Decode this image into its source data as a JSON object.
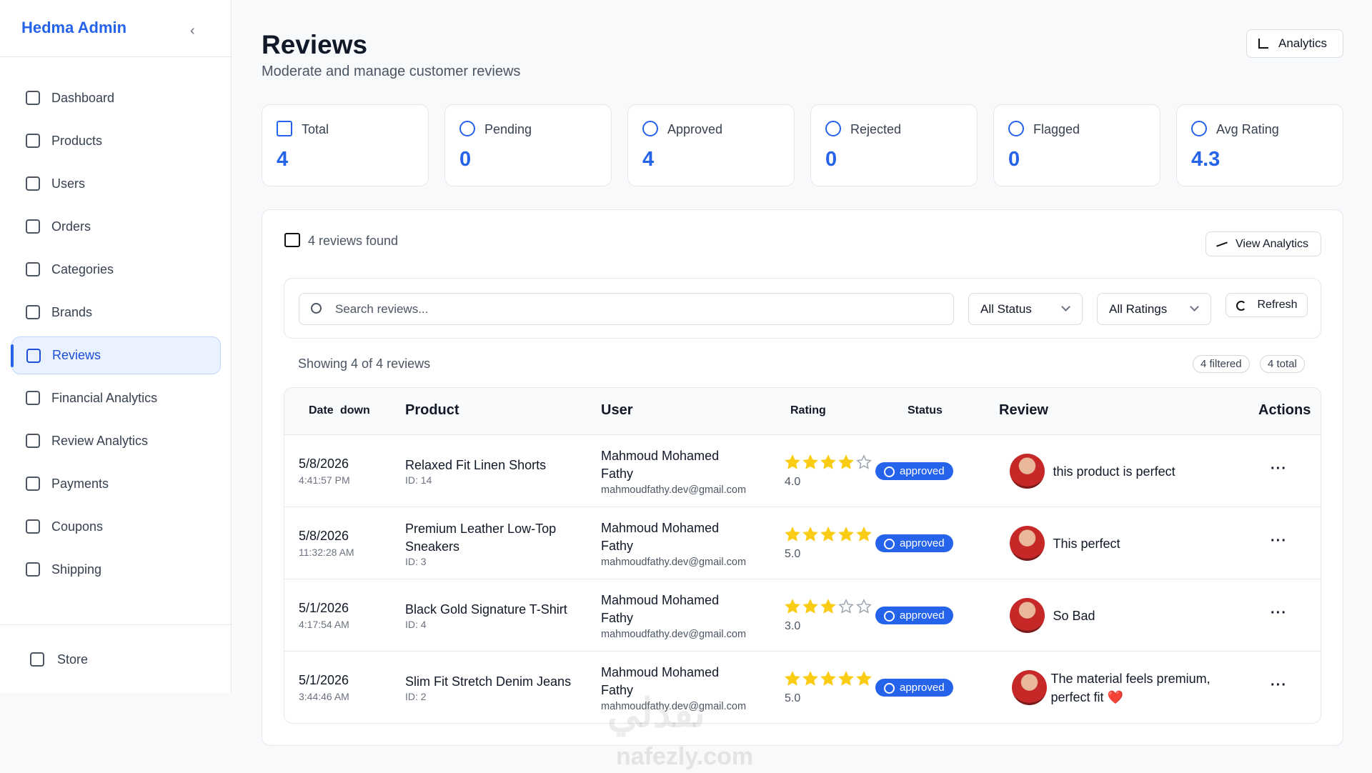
{
  "sidebar": {
    "brand": "Hedma Admin",
    "nav": [
      "Dashboard",
      "Products",
      "Users",
      "Orders",
      "Categories",
      "Brands",
      "Reviews",
      "Financial Analytics",
      "Review Analytics",
      "Payments",
      "Coupons",
      "Shipping"
    ],
    "footer": "Store"
  },
  "header": {
    "title": "Reviews",
    "subtitle": "Moderate and manage customer reviews",
    "button": "Analytics"
  },
  "stats": [
    {
      "label": "Total",
      "value": 4
    },
    {
      "label": "Pending",
      "value": 0
    },
    {
      "label": "Approved",
      "value": 4
    },
    {
      "label": "Rejected",
      "value": 0
    },
    {
      "label": "Flagged",
      "value": 0
    },
    {
      "label": "Avg Rating",
      "value": 4.3
    }
  ],
  "panel": {
    "count_text": "4 reviews found",
    "button": "View Analytics",
    "search_placeholder": "Search reviews...",
    "status_filter": "All Status",
    "rating_filter": "All Ratings",
    "refresh": "Refresh",
    "showing": "Showing 4 of 4 reviews",
    "badges": [
      "4 filtered",
      "4 total"
    ]
  },
  "table": {
    "columns": [
      "Date",
      "Product",
      "User",
      "Rating",
      "Status",
      "Review",
      "Actions"
    ],
    "date_sort": "down",
    "rows": [
      {
        "date": "5/8/2026",
        "time": "4:41:57 PM",
        "product": "Relaxed Fit Linen Shorts",
        "product_id": "ID: 14",
        "user": "Mahmoud Mohamed Fathy",
        "email": "mahmoudfathy.dev@gmail.com",
        "rating": {
          "value": 4,
          "label": "4.0"
        },
        "status": "approved",
        "review": "this product is perfect"
      },
      {
        "date": "5/8/2026",
        "time": "11:32:28 AM",
        "product": "Premium Leather Low-Top Sneakers",
        "product_id": "ID: 3",
        "user": "Mahmoud Mohamed Fathy",
        "email": "mahmoudfathy.dev@gmail.com",
        "rating": {
          "value": 5,
          "label": "5.0"
        },
        "status": "approved",
        "review": "This perfect"
      },
      {
        "date": "5/1/2026",
        "time": "4:17:54 AM",
        "product": "Black Gold Signature T-Shirt",
        "product_id": "ID: 4",
        "user": "Mahmoud Mohamed Fathy",
        "email": "mahmoudfathy.dev@gmail.com",
        "rating": {
          "value": 3,
          "label": "3.0"
        },
        "status": "approved",
        "review": "So Bad"
      },
      {
        "date": "5/1/2026",
        "time": "3:44:46 AM",
        "product": "Slim Fit Stretch Denim Jeans",
        "product_id": "ID: 2",
        "user": "Mahmoud Mohamed Fathy",
        "email": "mahmoudfathy.dev@gmail.com",
        "rating": {
          "value": 5,
          "label": "5.0"
        },
        "status": "approved",
        "review": "The material feels premium, perfect fit ❤️"
      }
    ]
  },
  "watermark": [
    "نفذلي",
    "nafezly.com"
  ]
}
